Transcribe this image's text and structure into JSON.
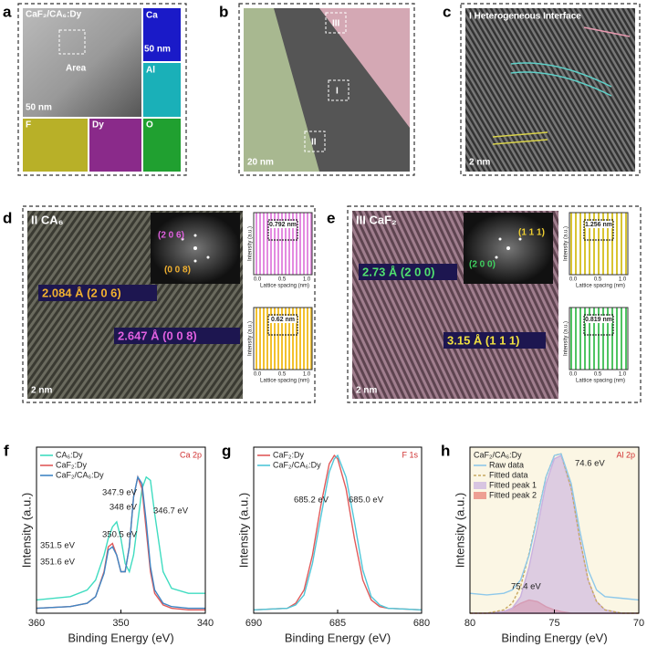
{
  "panels": {
    "a": {
      "letter": "a",
      "title": "CaF₂/CA₆:Dy",
      "area": "Area",
      "scale_main": "50 nm",
      "scale_map": "50 nm",
      "maps": [
        "Ca",
        "Al",
        "F",
        "Dy",
        "O"
      ]
    },
    "b": {
      "letter": "b",
      "scale": "20 nm",
      "regions": [
        "III",
        "I",
        "II"
      ]
    },
    "c": {
      "letter": "c",
      "title": "I Heterogeneous Interface",
      "scale": "2 nm"
    },
    "d": {
      "letter": "d",
      "title": "II CA₆",
      "fft": [
        "(2 0 6)",
        "(0 0 8)"
      ],
      "labels": [
        "2.084 Å (2 0 6)",
        "2.647 Å (0 0 8)"
      ],
      "scale": "2 nm",
      "profiles": [
        {
          "spacing": "0.792 nm",
          "xlabel": "Lattice spacing (nm)",
          "ylabel": "Intensity (a.u.)",
          "ticks": [
            "0.0",
            "0.5",
            "1.0"
          ]
        },
        {
          "spacing": "0.62 nm",
          "xlabel": "Lattice spacing (nm)",
          "ylabel": "Intensity (a.u.)",
          "ticks": [
            "0.0",
            "0.5",
            "1.0"
          ]
        }
      ]
    },
    "e": {
      "letter": "e",
      "title": "III CaF₂",
      "fft": [
        "(1 1 1)",
        "(2 0 0)"
      ],
      "labels": [
        "2.73 Å (2 0 0)",
        "3.15 Å (1 1 1)"
      ],
      "scale": "2 nm",
      "profiles": [
        {
          "spacing": "1.256 nm",
          "xlabel": "Lattice spacing (nm)",
          "ylabel": "Intensity (a.u.)",
          "ticks": [
            "0.0",
            "0.5",
            "1.0"
          ]
        },
        {
          "spacing": "0.819 nm",
          "xlabel": "Lattice spacing (nm)",
          "ylabel": "Intensity (a.u.)",
          "ticks": [
            "0.0",
            "0.5",
            "1.0"
          ]
        }
      ]
    }
  },
  "chart_data": [
    {
      "type": "line",
      "letter": "f",
      "corner_label": "Ca 2p",
      "xlabel": "Binding Energy (eV)",
      "ylabel": "Intensity (a.u.)",
      "xlim": [
        360,
        340
      ],
      "xticks": [
        360,
        350,
        340
      ],
      "ylim": [
        0,
        100
      ],
      "x": [
        360,
        356,
        354,
        353,
        352,
        351.5,
        351,
        350.5,
        350,
        349.5,
        349,
        348.5,
        348,
        347.5,
        347,
        346.5,
        346,
        345,
        344,
        342,
        340
      ],
      "series": [
        {
          "name": "CA₆:Dy",
          "color": "#3fdcc0",
          "values": [
            8,
            10,
            14,
            20,
            35,
            45,
            52,
            55,
            45,
            30,
            25,
            35,
            55,
            75,
            82,
            80,
            60,
            25,
            15,
            12,
            12
          ]
        },
        {
          "name": "CaF₂:Dy",
          "color": "#e05a5a",
          "values": [
            3,
            4,
            6,
            10,
            25,
            40,
            42,
            35,
            25,
            25,
            40,
            70,
            82,
            75,
            50,
            25,
            12,
            5,
            3,
            2,
            2
          ]
        },
        {
          "name": "CaF₂/CA₆:Dy",
          "color": "#3f86c4",
          "values": [
            3,
            4,
            6,
            10,
            24,
            38,
            40,
            35,
            25,
            25,
            40,
            70,
            82,
            78,
            55,
            28,
            14,
            6,
            4,
            3,
            3
          ]
        }
      ],
      "annotations": [
        "347.9 eV",
        "348 eV",
        "346.7 eV",
        "351.5 eV",
        "350.5 eV",
        "351.6 eV"
      ]
    },
    {
      "type": "line",
      "letter": "g",
      "corner_label": "F 1s",
      "xlabel": "Binding Energy (eV)",
      "ylabel": "Intensity (a.u.)",
      "xlim": [
        690,
        680
      ],
      "xticks": [
        690,
        685,
        680
      ],
      "ylim": [
        0,
        100
      ],
      "x": [
        690,
        688,
        687.5,
        687,
        686.5,
        686,
        685.5,
        685.2,
        685,
        684.5,
        684,
        683.5,
        683,
        682.5,
        682,
        680
      ],
      "series": [
        {
          "name": "CaF₂:Dy",
          "color": "#e05a5a",
          "values": [
            2,
            3,
            6,
            14,
            35,
            65,
            90,
            95,
            93,
            75,
            45,
            20,
            8,
            4,
            3,
            2
          ]
        },
        {
          "name": "CaF₂/CA₆:Dy",
          "color": "#4fc6d8",
          "values": [
            2,
            3,
            5,
            11,
            30,
            58,
            85,
            93,
            95,
            82,
            55,
            26,
            10,
            5,
            3,
            2
          ]
        }
      ],
      "annotations": [
        "685.2 eV",
        "685.0 eV"
      ]
    },
    {
      "type": "area",
      "letter": "h",
      "title": "CaF₂/CA₆:Dy",
      "corner_label": "Al 2p",
      "xlabel": "Binding Energy (eV)",
      "ylabel": "Intensity (a.u.)",
      "xlim": [
        80,
        70
      ],
      "xticks": [
        80,
        75,
        70
      ],
      "ylim": [
        0,
        100
      ],
      "x": [
        80,
        79,
        78,
        77.5,
        77,
        76.5,
        76,
        75.5,
        75,
        74.6,
        74,
        73.5,
        73,
        72.5,
        72,
        71,
        70
      ],
      "series": [
        {
          "name": "Raw data",
          "color": "#8ec8ea",
          "values": [
            12,
            11,
            12,
            14,
            20,
            35,
            58,
            82,
            95,
            96,
            78,
            50,
            26,
            14,
            10,
            9,
            8
          ]
        },
        {
          "name": "Fitted data",
          "color": "#c8a860",
          "values": [
            0,
            0,
            2,
            6,
            16,
            36,
            59,
            82,
            95,
            96,
            75,
            45,
            20,
            7,
            2,
            0,
            0
          ]
        },
        {
          "name": "Fitted peak 1",
          "color": "#c9b0e0",
          "values": [
            0,
            0,
            1,
            3,
            10,
            28,
            52,
            78,
            93,
            95,
            75,
            45,
            20,
            7,
            2,
            0,
            0
          ]
        },
        {
          "name": "Fitted peak 2",
          "color": "#e87a70",
          "values": [
            0,
            0,
            1,
            3,
            6,
            8,
            7,
            4,
            2,
            1,
            0,
            0,
            0,
            0,
            0,
            0,
            0
          ]
        }
      ],
      "annotations": [
        "74.6 eV",
        "75.4 eV"
      ]
    }
  ]
}
